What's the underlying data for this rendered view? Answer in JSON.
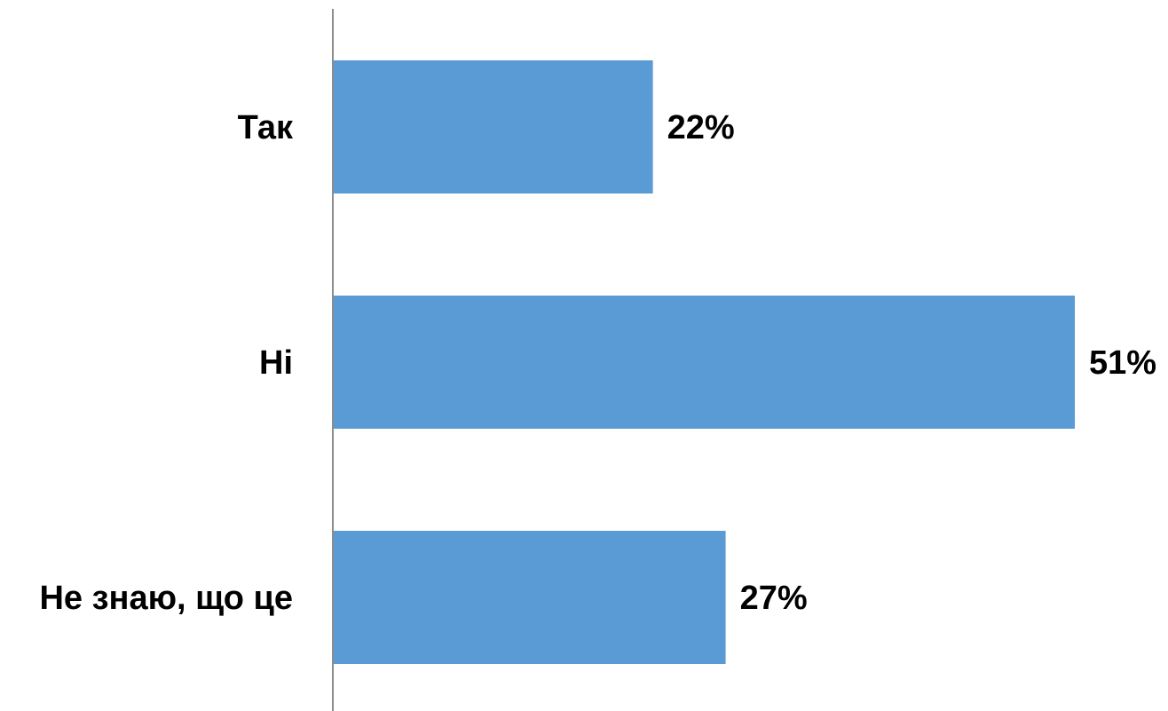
{
  "chart_data": {
    "type": "bar",
    "orientation": "horizontal",
    "categories": [
      "Так",
      "Ні",
      "Не знаю, що це"
    ],
    "values": [
      22,
      51,
      27
    ],
    "value_labels": [
      "22%",
      "51%",
      "27%"
    ],
    "unit": "%",
    "title": "",
    "xlabel": "",
    "ylabel": "",
    "xlim": [
      0,
      51
    ],
    "grid": false,
    "legend": "none",
    "colors": {
      "bar": "#5b9bd5",
      "axis": "#8c8c8c",
      "text": "#000000"
    }
  }
}
